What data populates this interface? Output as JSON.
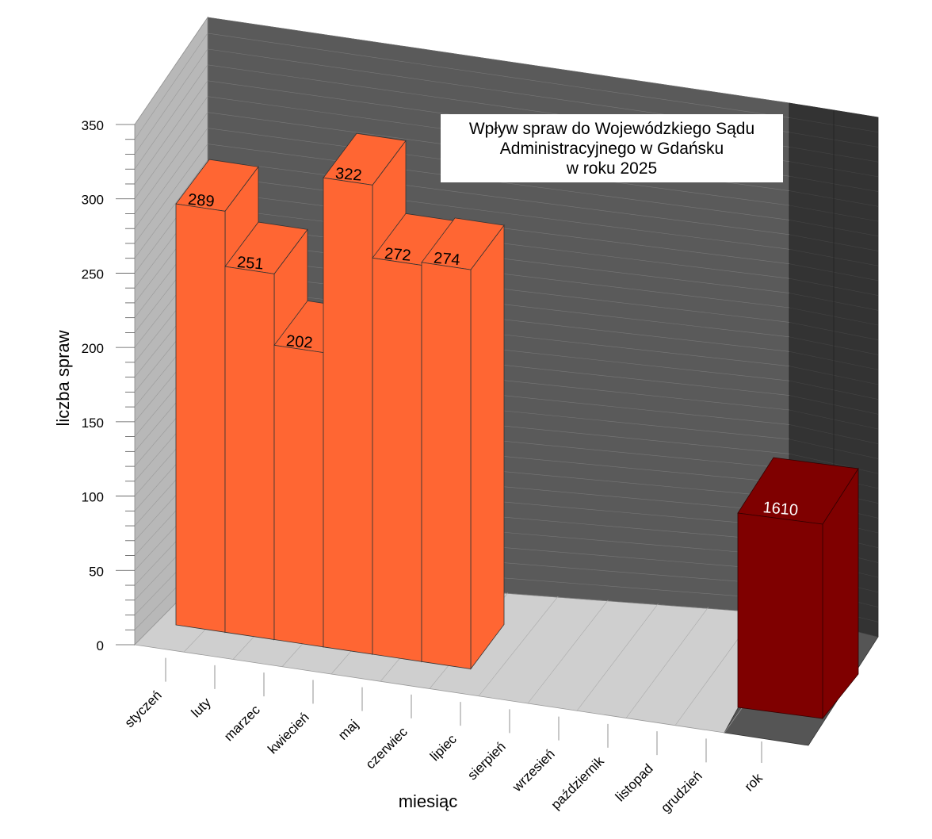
{
  "chart_data": {
    "type": "bar",
    "title_lines": [
      "Wpływ spraw do Wojewódzkiego Sądu",
      "Administracyjnego w Gdańsku",
      "w roku 2025"
    ],
    "xlabel": "miesiąc",
    "ylabel": "liczba spraw",
    "ylim": [
      0,
      350
    ],
    "y_ticks": [
      0,
      50,
      100,
      150,
      200,
      250,
      300,
      350
    ],
    "grid": true,
    "categories": [
      "styczeń",
      "luty",
      "marzec",
      "kwiecień",
      "maj",
      "czerwiec",
      "lipiec",
      "sierpień",
      "wrzesień",
      "październik",
      "listopad",
      "grudzień"
    ],
    "series": [
      {
        "values": [
          289,
          251,
          202,
          322,
          272,
          274,
          null,
          null,
          null,
          null,
          null,
          null
        ],
        "color": "#ff6633"
      }
    ],
    "total": {
      "category": "rok",
      "value": 1610,
      "color": "#7f0000"
    }
  }
}
